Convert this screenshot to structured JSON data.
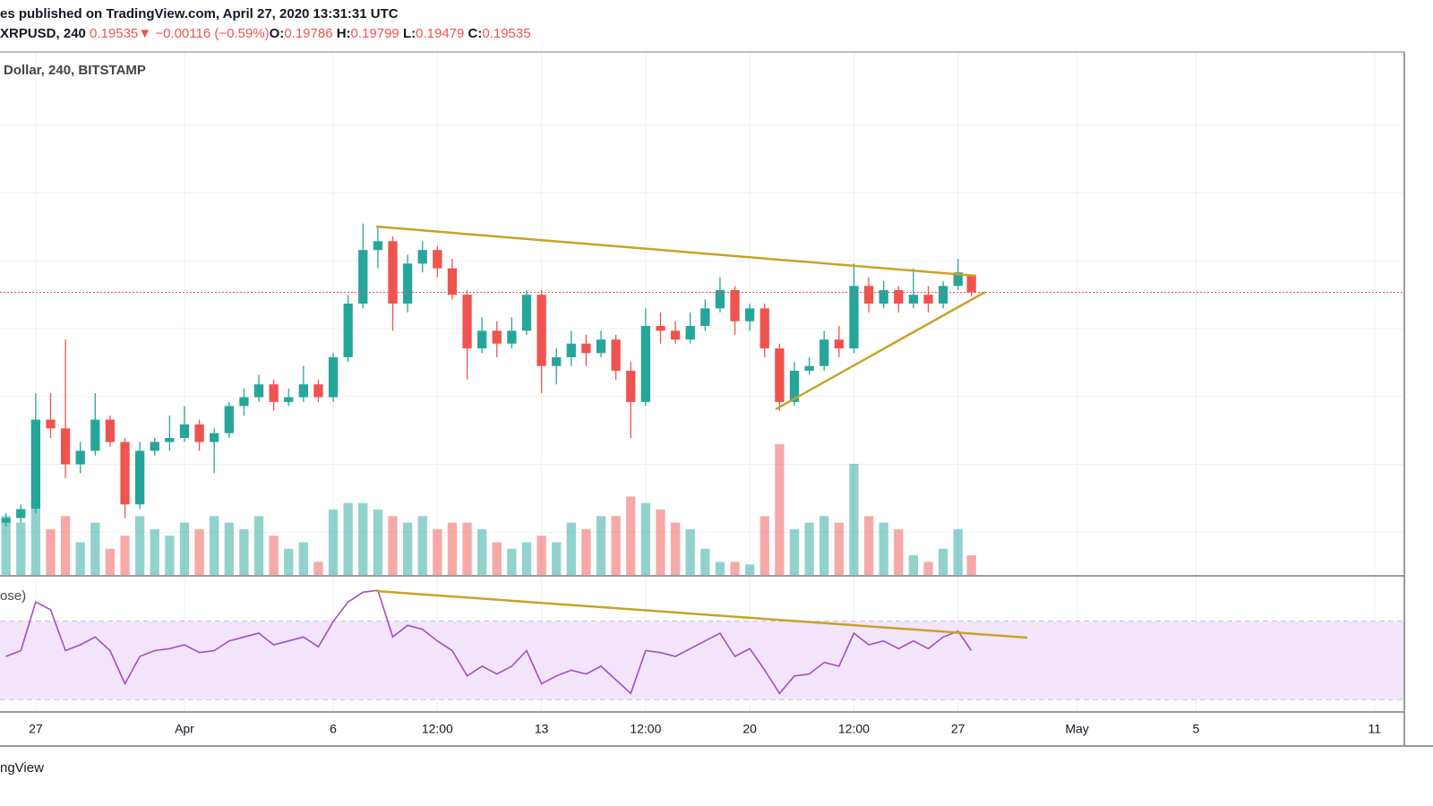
{
  "header": {
    "published": "es published on TradingView.com, April 27, 2020 13:31:31 UTC",
    "symbol": "XRPUSD, 240",
    "direction": "▼",
    "change": "−0.00116 (−0.59%)",
    "ohlc_labels": [
      "O:",
      "H:",
      "L:",
      "C:"
    ]
  },
  "footer": "ngView",
  "chart_data": {
    "type": "candlestick",
    "pane_title": "Dollar, 240, BITSTAMP",
    "indicator_title": "ose)",
    "up_color": "#26a69a",
    "down_color": "#ef5350",
    "rsi_color": "#a04fc6",
    "grid": true,
    "xlim": [
      -1.2,
      46
    ],
    "xticks": [
      {
        "value": 0,
        "label": "27"
      },
      {
        "value": 5,
        "label": "Apr"
      },
      {
        "value": 10,
        "label": "6"
      },
      {
        "value": 13.5,
        "label": "12:00"
      },
      {
        "value": 17,
        "label": "13"
      },
      {
        "value": 20.5,
        "label": "12:00"
      },
      {
        "value": 24,
        "label": "20"
      },
      {
        "value": 27.5,
        "label": "12:00"
      },
      {
        "value": 31,
        "label": "27"
      },
      {
        "value": 35,
        "label": "May"
      },
      {
        "value": 39,
        "label": "5"
      },
      {
        "value": 45,
        "label": "11"
      }
    ],
    "ylim": [
      0.1537,
      0.2308
    ],
    "yticks": [
      0.16,
      0.17,
      0.18,
      0.19,
      0.2,
      0.21,
      0.22
    ],
    "volume_lim": [
      0,
      100
    ],
    "rsi_lim": [
      23.5,
      92.5
    ],
    "rsi_bands": [
      70,
      30
    ],
    "candles": {
      "x": [
        -1,
        -0.5,
        0,
        0.5,
        1,
        1.5,
        2,
        2.5,
        3,
        3.5,
        4,
        4.5,
        5,
        5.5,
        6,
        6.5,
        7,
        7.5,
        8,
        8.5,
        9,
        9.5,
        10,
        10.5,
        11,
        11.5,
        12,
        12.5,
        13,
        13.5,
        14,
        14.5,
        15,
        15.5,
        16,
        16.5,
        17,
        17.5,
        18,
        18.5,
        19,
        19.5,
        20,
        20.5,
        21,
        21.5,
        22,
        22.5,
        23,
        23.5,
        24,
        24.5,
        25,
        25.5,
        26,
        26.5,
        27,
        27.5,
        28,
        28.5,
        29,
        29.5,
        30,
        30.5,
        31,
        31.45
      ],
      "open": [
        0.1614,
        0.1621,
        0.1634,
        0.1766,
        0.1753,
        0.17,
        0.172,
        0.1766,
        0.1733,
        0.1641,
        0.172,
        0.1733,
        0.1739,
        0.1759,
        0.1733,
        0.1746,
        0.1786,
        0.1799,
        0.1818,
        0.1792,
        0.1799,
        0.1818,
        0.1799,
        0.1858,
        0.1937,
        0.2016,
        0.2029,
        0.1937,
        0.1996,
        0.2016,
        0.1989,
        0.195,
        0.1871,
        0.1897,
        0.1878,
        0.1897,
        0.195,
        0.1845,
        0.1858,
        0.1878,
        0.1864,
        0.1884,
        0.1838,
        0.1792,
        0.1904,
        0.1897,
        0.1884,
        0.1904,
        0.193,
        0.1957,
        0.1911,
        0.193,
        0.1871,
        0.1792,
        0.1838,
        0.1845,
        0.1884,
        0.1871,
        0.1963,
        0.1937,
        0.1957,
        0.1937,
        0.195,
        0.1937,
        0.1963,
        0.19786
      ],
      "high": [
        0.1628,
        0.1641,
        0.1805,
        0.1805,
        0.1884,
        0.1733,
        0.1805,
        0.1772,
        0.1739,
        0.1733,
        0.1739,
        0.1772,
        0.1786,
        0.1766,
        0.1753,
        0.1792,
        0.1812,
        0.1832,
        0.1825,
        0.1812,
        0.1845,
        0.1825,
        0.1864,
        0.195,
        0.2055,
        0.2049,
        0.2036,
        0.2009,
        0.2029,
        0.2022,
        0.2003,
        0.1957,
        0.1917,
        0.1911,
        0.1917,
        0.1957,
        0.1957,
        0.1871,
        0.1897,
        0.1891,
        0.1897,
        0.1891,
        0.1851,
        0.193,
        0.1924,
        0.1911,
        0.1924,
        0.1943,
        0.1976,
        0.1963,
        0.1937,
        0.1937,
        0.1878,
        0.1851,
        0.1858,
        0.1897,
        0.1904,
        0.1996,
        0.1976,
        0.197,
        0.1963,
        0.1989,
        0.1963,
        0.197,
        0.2003,
        0.19799
      ],
      "low": [
        0.1608,
        0.1614,
        0.1628,
        0.1739,
        0.168,
        0.1687,
        0.1713,
        0.1726,
        0.1621,
        0.1634,
        0.1713,
        0.172,
        0.1733,
        0.172,
        0.1687,
        0.1739,
        0.1772,
        0.1792,
        0.1779,
        0.1786,
        0.1792,
        0.1792,
        0.1792,
        0.1851,
        0.193,
        0.1989,
        0.1897,
        0.1924,
        0.1983,
        0.1976,
        0.1943,
        0.1825,
        0.1864,
        0.1858,
        0.1871,
        0.1891,
        0.1805,
        0.1818,
        0.1845,
        0.1845,
        0.1858,
        0.1825,
        0.1739,
        0.1786,
        0.1878,
        0.1878,
        0.1878,
        0.1897,
        0.1924,
        0.1891,
        0.1897,
        0.1858,
        0.1779,
        0.1786,
        0.1832,
        0.1838,
        0.1858,
        0.1864,
        0.1924,
        0.193,
        0.1924,
        0.193,
        0.1924,
        0.193,
        0.1957,
        0.19479
      ],
      "close": [
        0.1621,
        0.1634,
        0.1766,
        0.1753,
        0.17,
        0.172,
        0.1766,
        0.1733,
        0.1641,
        0.172,
        0.1733,
        0.1739,
        0.1759,
        0.1733,
        0.1746,
        0.1786,
        0.1799,
        0.1818,
        0.1792,
        0.1799,
        0.1818,
        0.1799,
        0.1858,
        0.1937,
        0.2016,
        0.2029,
        0.1937,
        0.1996,
        0.2016,
        0.1989,
        0.195,
        0.1871,
        0.1897,
        0.1878,
        0.1897,
        0.195,
        0.1845,
        0.1858,
        0.1878,
        0.1864,
        0.1884,
        0.1838,
        0.1792,
        0.1904,
        0.1897,
        0.1884,
        0.1904,
        0.193,
        0.1957,
        0.1911,
        0.193,
        0.1871,
        0.1792,
        0.1838,
        0.1845,
        0.1884,
        0.1871,
        0.1963,
        0.1937,
        0.1957,
        0.1937,
        0.195,
        0.1937,
        0.1963,
        0.1983,
        0.19535
      ],
      "volume": [
        45,
        40,
        50,
        35,
        45,
        25,
        40,
        20,
        30,
        45,
        35,
        30,
        40,
        35,
        45,
        40,
        35,
        45,
        30,
        20,
        25,
        10,
        50,
        55,
        55,
        50,
        45,
        40,
        45,
        35,
        40,
        40,
        35,
        25,
        20,
        25,
        30,
        25,
        40,
        35,
        45,
        45,
        60,
        55,
        50,
        40,
        35,
        20,
        10,
        10,
        8,
        45,
        100,
        35,
        40,
        45,
        40,
        85,
        45,
        40,
        35,
        15,
        10,
        20,
        35,
        15
      ],
      "rsi": [
        52,
        55,
        80,
        76,
        55,
        58,
        62,
        55,
        38,
        52,
        55,
        56,
        58,
        54,
        55,
        60,
        62,
        64,
        58,
        60,
        62,
        57,
        70,
        80,
        85,
        86,
        62,
        68,
        66,
        60,
        55,
        42,
        47,
        43,
        47,
        55,
        38,
        42,
        45,
        43,
        47,
        40,
        33,
        55,
        54,
        52,
        56,
        60,
        64,
        52,
        56,
        45,
        33,
        42,
        43,
        49,
        47,
        64,
        58,
        60,
        56,
        60,
        56,
        62,
        65,
        55
      ]
    }
  }
}
